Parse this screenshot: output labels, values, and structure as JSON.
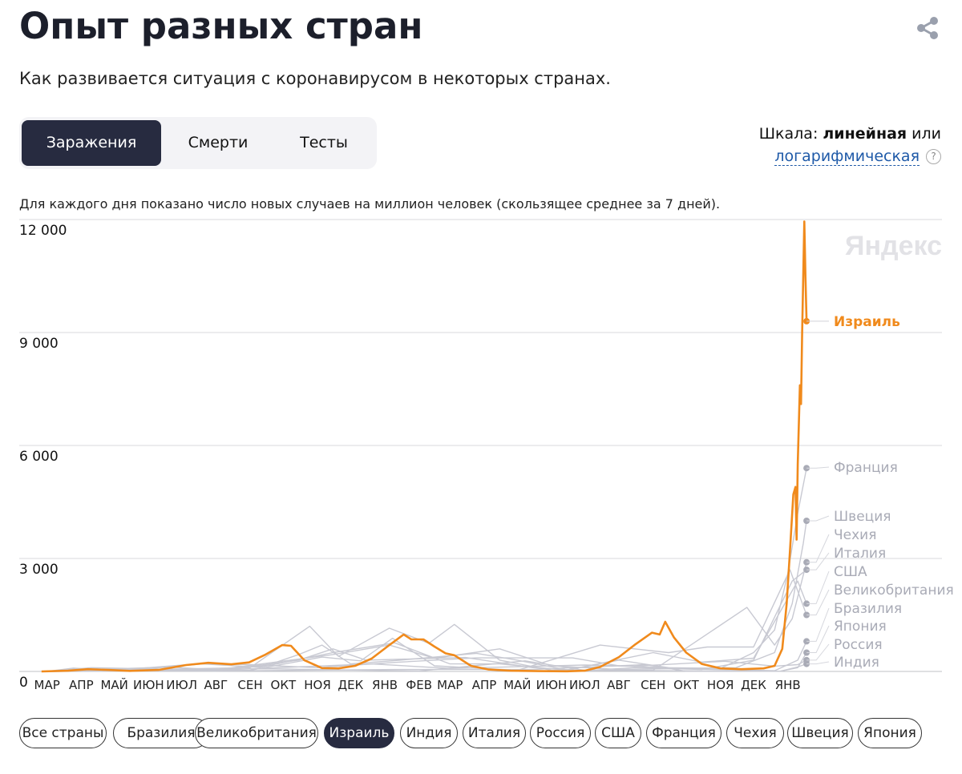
{
  "header": {
    "title": "Опыт разных стран",
    "subtitle": "Как развивается ситуация с коронавирусом в некоторых странах."
  },
  "tabs": [
    {
      "label": "Заражения",
      "active": true
    },
    {
      "label": "Смерти",
      "active": false
    },
    {
      "label": "Тесты",
      "active": false
    }
  ],
  "scale": {
    "prefix": "Шкала:",
    "linear": "линейная",
    "or": "или",
    "log": "логарифмическая",
    "help": "?"
  },
  "note": "Для каждого дня показано число новых случаев на миллион человек (скользящее среднее за 7 дней).",
  "watermark": "Яндекс",
  "chart_data": {
    "type": "line",
    "ylim": [
      0,
      12000
    ],
    "yticks": [
      0,
      3000,
      6000,
      9000,
      12000
    ],
    "ytick_labels": [
      "0",
      "3 000",
      "6 000",
      "9 000",
      "12 000"
    ],
    "x_range": [
      "2020-02-15",
      "2022-01-31"
    ],
    "xticks": [
      {
        "date": "2020-03-01",
        "label": "МАР"
      },
      {
        "date": "2020-04-01",
        "label": "АПР"
      },
      {
        "date": "2020-05-01",
        "label": "МАЙ"
      },
      {
        "date": "2020-06-01",
        "label": "ИЮН"
      },
      {
        "date": "2020-07-01",
        "label": "ИЮЛ"
      },
      {
        "date": "2020-08-01",
        "label": "АВГ"
      },
      {
        "date": "2020-09-01",
        "label": "СЕН"
      },
      {
        "date": "2020-10-01",
        "label": "ОКТ"
      },
      {
        "date": "2020-11-01",
        "label": "НОЯ"
      },
      {
        "date": "2020-12-01",
        "label": "ДЕК"
      },
      {
        "date": "2021-01-01",
        "label": "ЯНВ"
      },
      {
        "date": "2021-02-01",
        "label": "ФЕВ"
      },
      {
        "date": "2021-03-01",
        "label": "МАР"
      },
      {
        "date": "2021-04-01",
        "label": "АПР"
      },
      {
        "date": "2021-05-01",
        "label": "МАЙ"
      },
      {
        "date": "2021-06-01",
        "label": "ИЮН"
      },
      {
        "date": "2021-07-01",
        "label": "ИЮЛ"
      },
      {
        "date": "2021-08-01",
        "label": "АВГ"
      },
      {
        "date": "2021-09-01",
        "label": "СЕН"
      },
      {
        "date": "2021-10-01",
        "label": "ОКТ"
      },
      {
        "date": "2021-11-01",
        "label": "НОЯ"
      },
      {
        "date": "2021-12-01",
        "label": "ДЕК"
      },
      {
        "date": "2022-01-01",
        "label": "ЯНВ"
      }
    ],
    "grid": true,
    "highlight_color": "#f08a1c",
    "muted_color": "#c8c9d2",
    "series": [
      {
        "name": "Израиль",
        "highlight": true,
        "end_value": 9300,
        "points": [
          [
            "2020-02-25",
            0
          ],
          [
            "2020-03-20",
            20
          ],
          [
            "2020-04-07",
            60
          ],
          [
            "2020-04-25",
            40
          ],
          [
            "2020-05-15",
            15
          ],
          [
            "2020-06-10",
            40
          ],
          [
            "2020-07-05",
            170
          ],
          [
            "2020-07-25",
            230
          ],
          [
            "2020-08-15",
            190
          ],
          [
            "2020-08-31",
            240
          ],
          [
            "2020-09-15",
            450
          ],
          [
            "2020-09-30",
            700
          ],
          [
            "2020-10-08",
            680
          ],
          [
            "2020-10-20",
            300
          ],
          [
            "2020-11-05",
            90
          ],
          [
            "2020-11-20",
            80
          ],
          [
            "2020-12-05",
            150
          ],
          [
            "2020-12-20",
            340
          ],
          [
            "2021-01-05",
            700
          ],
          [
            "2021-01-18",
            980
          ],
          [
            "2021-01-25",
            850
          ],
          [
            "2021-02-05",
            850
          ],
          [
            "2021-02-15",
            660
          ],
          [
            "2021-02-25",
            480
          ],
          [
            "2021-03-05",
            430
          ],
          [
            "2021-03-20",
            150
          ],
          [
            "2021-04-05",
            50
          ],
          [
            "2021-04-25",
            20
          ],
          [
            "2021-05-20",
            8
          ],
          [
            "2021-06-15",
            5
          ],
          [
            "2021-07-01",
            20
          ],
          [
            "2021-07-15",
            120
          ],
          [
            "2021-08-01",
            380
          ],
          [
            "2021-08-15",
            700
          ],
          [
            "2021-08-31",
            1030
          ],
          [
            "2021-09-07",
            980
          ],
          [
            "2021-09-12",
            1320
          ],
          [
            "2021-09-20",
            900
          ],
          [
            "2021-10-01",
            500
          ],
          [
            "2021-10-15",
            200
          ],
          [
            "2021-11-01",
            80
          ],
          [
            "2021-11-20",
            60
          ],
          [
            "2021-12-10",
            80
          ],
          [
            "2021-12-20",
            150
          ],
          [
            "2021-12-27",
            600
          ],
          [
            "2021-12-31",
            1800
          ],
          [
            "2022-01-03",
            3200
          ],
          [
            "2022-01-06",
            4700
          ],
          [
            "2022-01-08",
            4900
          ],
          [
            "2022-01-09",
            3500
          ],
          [
            "2022-01-10",
            5500
          ],
          [
            "2022-01-12",
            7600
          ],
          [
            "2022-01-13",
            7100
          ],
          [
            "2022-01-14",
            9000
          ],
          [
            "2022-01-16",
            11950
          ],
          [
            "2022-01-17",
            10500
          ],
          [
            "2022-01-18",
            9300
          ]
        ]
      },
      {
        "name": "Франция",
        "highlight": false,
        "end_value": 5400,
        "points": [
          [
            "2020-03-01",
            0
          ],
          [
            "2020-04-01",
            60
          ],
          [
            "2020-05-01",
            15
          ],
          [
            "2020-08-01",
            40
          ],
          [
            "2020-09-15",
            150
          ],
          [
            "2020-10-15",
            450
          ],
          [
            "2020-11-05",
            700
          ],
          [
            "2020-12-01",
            200
          ],
          [
            "2021-01-15",
            300
          ],
          [
            "2021-03-25",
            480
          ],
          [
            "2021-05-01",
            300
          ],
          [
            "2021-06-15",
            40
          ],
          [
            "2021-08-01",
            300
          ],
          [
            "2021-09-15",
            100
          ],
          [
            "2021-11-01",
            80
          ],
          [
            "2021-12-01",
            500
          ],
          [
            "2021-12-20",
            1100
          ],
          [
            "2022-01-01",
            2600
          ],
          [
            "2022-01-10",
            4200
          ],
          [
            "2022-01-18",
            5400
          ]
        ]
      },
      {
        "name": "Швеция",
        "highlight": false,
        "end_value": 4000,
        "points": [
          [
            "2020-03-01",
            0
          ],
          [
            "2020-04-15",
            50
          ],
          [
            "2020-06-20",
            120
          ],
          [
            "2020-08-01",
            40
          ],
          [
            "2020-11-15",
            450
          ],
          [
            "2021-01-05",
            700
          ],
          [
            "2021-02-15",
            350
          ],
          [
            "2021-04-15",
            600
          ],
          [
            "2021-06-01",
            150
          ],
          [
            "2021-08-01",
            50
          ],
          [
            "2021-11-15",
            100
          ],
          [
            "2021-12-20",
            500
          ],
          [
            "2022-01-05",
            1800
          ],
          [
            "2022-01-15",
            3400
          ],
          [
            "2022-01-18",
            4000
          ]
        ]
      },
      {
        "name": "Чехия",
        "highlight": false,
        "end_value": 2900,
        "points": [
          [
            "2020-03-01",
            0
          ],
          [
            "2020-09-01",
            100
          ],
          [
            "2020-10-25",
            1200
          ],
          [
            "2020-11-20",
            400
          ],
          [
            "2021-01-05",
            1150
          ],
          [
            "2021-02-10",
            750
          ],
          [
            "2021-03-05",
            1250
          ],
          [
            "2021-04-15",
            300
          ],
          [
            "2021-06-01",
            30
          ],
          [
            "2021-09-01",
            30
          ],
          [
            "2021-11-25",
            1700
          ],
          [
            "2021-12-20",
            700
          ],
          [
            "2022-01-05",
            1400
          ],
          [
            "2022-01-18",
            2900
          ]
        ]
      },
      {
        "name": "Италия",
        "highlight": false,
        "end_value": 2700,
        "points": [
          [
            "2020-03-01",
            0
          ],
          [
            "2020-03-25",
            90
          ],
          [
            "2020-05-01",
            20
          ],
          [
            "2020-08-01",
            10
          ],
          [
            "2020-10-15",
            300
          ],
          [
            "2020-11-15",
            600
          ],
          [
            "2020-12-15",
            300
          ],
          [
            "2021-03-15",
            370
          ],
          [
            "2021-05-15",
            100
          ],
          [
            "2021-07-01",
            20
          ],
          [
            "2021-08-15",
            100
          ],
          [
            "2021-10-15",
            50
          ],
          [
            "2021-12-01",
            300
          ],
          [
            "2022-01-05",
            2400
          ],
          [
            "2022-01-18",
            2700
          ]
        ]
      },
      {
        "name": "США",
        "highlight": false,
        "end_value": 1800,
        "points": [
          [
            "2020-03-01",
            0
          ],
          [
            "2020-04-10",
            100
          ],
          [
            "2020-06-01",
            70
          ],
          [
            "2020-07-20",
            200
          ],
          [
            "2020-09-10",
            110
          ],
          [
            "2020-11-15",
            500
          ],
          [
            "2021-01-10",
            760
          ],
          [
            "2021-03-01",
            200
          ],
          [
            "2021-04-15",
            200
          ],
          [
            "2021-06-15",
            35
          ],
          [
            "2021-09-01",
            500
          ],
          [
            "2021-10-15",
            250
          ],
          [
            "2021-12-01",
            350
          ],
          [
            "2022-01-10",
            2400
          ],
          [
            "2022-01-18",
            1800
          ]
        ]
      },
      {
        "name": "Великобритания",
        "highlight": false,
        "end_value": 1500,
        "points": [
          [
            "2020-03-01",
            0
          ],
          [
            "2020-04-15",
            70
          ],
          [
            "2020-06-01",
            20
          ],
          [
            "2020-09-01",
            30
          ],
          [
            "2020-11-05",
            380
          ],
          [
            "2020-12-10",
            280
          ],
          [
            "2021-01-08",
            880
          ],
          [
            "2021-02-15",
            150
          ],
          [
            "2021-05-01",
            30
          ],
          [
            "2021-07-15",
            700
          ],
          [
            "2021-09-15",
            500
          ],
          [
            "2021-10-20",
            650
          ],
          [
            "2021-12-01",
            650
          ],
          [
            "2022-01-03",
            2700
          ],
          [
            "2022-01-18",
            1500
          ]
        ]
      },
      {
        "name": "Бразилия",
        "highlight": false,
        "end_value": 800,
        "points": [
          [
            "2020-03-01",
            0
          ],
          [
            "2020-05-01",
            30
          ],
          [
            "2020-07-15",
            200
          ],
          [
            "2020-09-01",
            180
          ],
          [
            "2020-11-01",
            100
          ],
          [
            "2021-01-10",
            240
          ],
          [
            "2021-03-25",
            360
          ],
          [
            "2021-06-20",
            360
          ],
          [
            "2021-08-01",
            150
          ],
          [
            "2021-10-15",
            60
          ],
          [
            "2021-12-20",
            20
          ],
          [
            "2022-01-10",
            300
          ],
          [
            "2022-01-18",
            800
          ]
        ]
      },
      {
        "name": "Япония",
        "highlight": false,
        "end_value": 500,
        "points": [
          [
            "2020-03-01",
            0
          ],
          [
            "2020-08-01",
            10
          ],
          [
            "2021-01-10",
            50
          ],
          [
            "2021-05-15",
            50
          ],
          [
            "2021-08-25",
            180
          ],
          [
            "2021-10-01",
            5
          ],
          [
            "2021-12-25",
            5
          ],
          [
            "2022-01-10",
            100
          ],
          [
            "2022-01-18",
            500
          ]
        ]
      },
      {
        "name": "Россия",
        "highlight": false,
        "end_value": 300,
        "points": [
          [
            "2020-03-01",
            0
          ],
          [
            "2020-05-15",
            70
          ],
          [
            "2020-08-01",
            35
          ],
          [
            "2020-12-20",
            200
          ],
          [
            "2021-03-01",
            80
          ],
          [
            "2021-07-01",
            170
          ],
          [
            "2021-08-15",
            140
          ],
          [
            "2021-11-05",
            270
          ],
          [
            "2021-12-20",
            140
          ],
          [
            "2022-01-10",
            180
          ],
          [
            "2022-01-18",
            300
          ]
        ]
      },
      {
        "name": "Индия",
        "highlight": false,
        "end_value": 200,
        "points": [
          [
            "2020-03-01",
            0
          ],
          [
            "2020-09-15",
            70
          ],
          [
            "2021-02-01",
            10
          ],
          [
            "2021-05-08",
            280
          ],
          [
            "2021-07-01",
            30
          ],
          [
            "2021-12-25",
            5
          ],
          [
            "2022-01-10",
            120
          ],
          [
            "2022-01-18",
            200
          ]
        ]
      }
    ]
  },
  "country_filters": [
    {
      "label": "Все страны",
      "active": false
    },
    {
      "label": "Бразилия",
      "active": false
    },
    {
      "label": "Великобритания",
      "active": false
    },
    {
      "label": "Израиль",
      "active": true
    },
    {
      "label": "Индия",
      "active": false
    },
    {
      "label": "Италия",
      "active": false
    },
    {
      "label": "Россия",
      "active": false
    },
    {
      "label": "США",
      "active": false
    },
    {
      "label": "Франция",
      "active": false
    },
    {
      "label": "Чехия",
      "active": false
    },
    {
      "label": "Швеция",
      "active": false
    },
    {
      "label": "Япония",
      "active": false
    }
  ]
}
